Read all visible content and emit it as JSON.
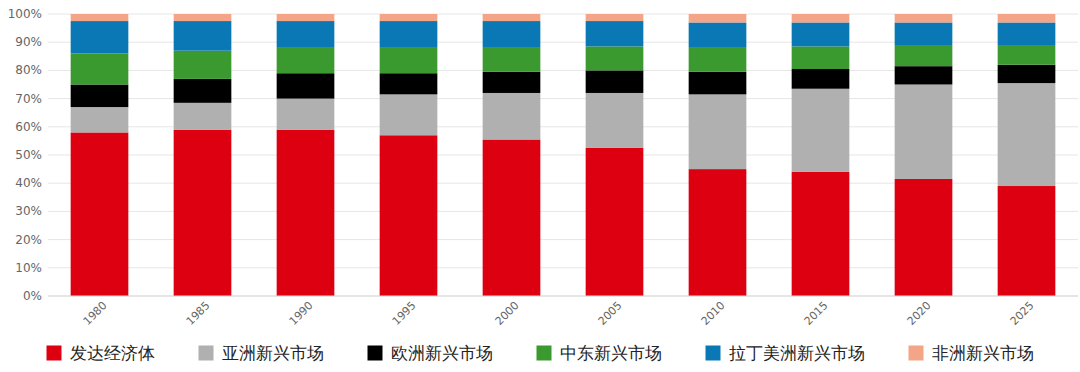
{
  "chart_data": {
    "type": "bar",
    "stacked": true,
    "grid": true,
    "legend": "bottom",
    "categories": [
      "1980",
      "1985",
      "1990",
      "1995",
      "2000",
      "2005",
      "2010",
      "2015",
      "2020",
      "2025"
    ],
    "ylim": [
      0,
      100
    ],
    "yticks": [
      {
        "value": 0,
        "label": "0%"
      },
      {
        "value": 10,
        "label": "10%"
      },
      {
        "value": 20,
        "label": "20%"
      },
      {
        "value": 30,
        "label": "30%"
      },
      {
        "value": 40,
        "label": "40%"
      },
      {
        "value": 50,
        "label": "50%"
      },
      {
        "value": 60,
        "label": "60%"
      },
      {
        "value": 70,
        "label": "70%"
      },
      {
        "value": 80,
        "label": "80%"
      },
      {
        "value": 90,
        "label": "90%"
      },
      {
        "value": 100,
        "label": "100%"
      }
    ],
    "series": [
      {
        "name": "发达经济体",
        "color": "#dc0010",
        "values": [
          58,
          59,
          59,
          57,
          55.5,
          52.5,
          45,
          44,
          41.5,
          39
        ]
      },
      {
        "name": "亚洲新兴市场",
        "color": "#b0b0b0",
        "values": [
          9,
          9.5,
          11,
          14.5,
          16.5,
          19.5,
          26.5,
          29.5,
          33.5,
          36.5
        ]
      },
      {
        "name": "欧洲新兴市场",
        "color": "#000000",
        "values": [
          8,
          8.5,
          9,
          7.5,
          7.5,
          8,
          8,
          7,
          6.5,
          6.5
        ]
      },
      {
        "name": "中东新兴市场",
        "color": "#3b9a2f",
        "values": [
          11,
          10,
          9,
          9,
          8.5,
          8.5,
          8.5,
          8,
          7.5,
          7
        ]
      },
      {
        "name": "拉丁美洲新兴市场",
        "color": "#0a78b4",
        "values": [
          11.5,
          10.5,
          9.5,
          9.5,
          9.5,
          9,
          9,
          8.5,
          8,
          8
        ]
      },
      {
        "name": "非洲新兴市场",
        "color": "#f4a487",
        "values": [
          2.5,
          2.5,
          2.5,
          2.5,
          2.5,
          2.5,
          3,
          3,
          3,
          3
        ]
      }
    ]
  }
}
